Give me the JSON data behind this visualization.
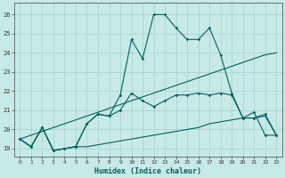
{
  "xlabel": "Humidex (Indice chaleur)",
  "bg_color": "#c8eae6",
  "grid_color": "#a8d4d0",
  "line_color": "#006060",
  "xlim": [
    -0.5,
    23.5
  ],
  "ylim": [
    18.6,
    26.6
  ],
  "xticks": [
    0,
    1,
    2,
    3,
    4,
    5,
    6,
    7,
    8,
    9,
    10,
    11,
    12,
    13,
    14,
    15,
    16,
    17,
    18,
    19,
    20,
    21,
    22,
    23
  ],
  "yticks": [
    19,
    20,
    21,
    22,
    23,
    24,
    25,
    26
  ],
  "series": {
    "line1_volatile": {
      "x": [
        0,
        1,
        2,
        3,
        4,
        5,
        6,
        7,
        8,
        9,
        10,
        11,
        12,
        13,
        14,
        15,
        16,
        17,
        18,
        19,
        20,
        21,
        22,
        23
      ],
      "y": [
        19.5,
        19.1,
        20.1,
        18.9,
        19.0,
        19.1,
        20.3,
        20.8,
        20.7,
        21.8,
        24.7,
        23.7,
        26.0,
        26.0,
        25.3,
        24.7,
        24.7,
        25.3,
        23.9,
        21.9,
        20.6,
        20.9,
        19.7,
        19.7
      ],
      "marker": true
    },
    "line2_rising": {
      "x": [
        0,
        1,
        2,
        3,
        4,
        5,
        6,
        7,
        8,
        9,
        10,
        11,
        12,
        13,
        14,
        15,
        16,
        17,
        18,
        19,
        20,
        21,
        22,
        23
      ],
      "y": [
        19.5,
        19.7,
        19.9,
        20.1,
        20.3,
        20.5,
        20.7,
        20.9,
        21.1,
        21.3,
        21.5,
        21.7,
        21.9,
        22.1,
        22.3,
        22.5,
        22.7,
        22.9,
        23.1,
        23.3,
        23.5,
        23.7,
        23.9,
        24.0
      ],
      "marker": false
    },
    "line3_mid": {
      "x": [
        0,
        1,
        2,
        3,
        4,
        5,
        6,
        7,
        8,
        9,
        10,
        11,
        12,
        13,
        14,
        15,
        16,
        17,
        18,
        19,
        20,
        21,
        22,
        23
      ],
      "y": [
        19.5,
        19.1,
        20.1,
        18.9,
        19.0,
        19.1,
        20.3,
        20.8,
        20.7,
        21.0,
        21.9,
        21.5,
        21.2,
        21.5,
        21.8,
        21.8,
        21.9,
        21.8,
        21.9,
        21.8,
        20.6,
        20.6,
        20.8,
        19.7
      ],
      "marker": true
    },
    "line4_flat": {
      "x": [
        0,
        1,
        2,
        3,
        4,
        5,
        6,
        7,
        8,
        9,
        10,
        11,
        12,
        13,
        14,
        15,
        16,
        17,
        18,
        19,
        20,
        21,
        22,
        23
      ],
      "y": [
        19.5,
        19.1,
        20.1,
        18.9,
        19.0,
        19.1,
        19.1,
        19.2,
        19.3,
        19.4,
        19.5,
        19.6,
        19.7,
        19.8,
        19.9,
        20.0,
        20.1,
        20.3,
        20.4,
        20.5,
        20.6,
        20.6,
        20.7,
        19.7
      ],
      "marker": false
    }
  }
}
